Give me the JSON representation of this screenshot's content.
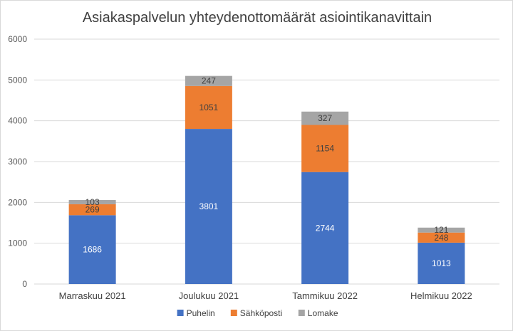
{
  "chart_data": {
    "type": "bar",
    "stacked": true,
    "title": "Asiakaspalvelun yhteydenottomäärät asiointikanavittain",
    "xlabel": "",
    "ylabel": "",
    "ylim": [
      0,
      6000
    ],
    "yticks": [
      "0",
      "1000",
      "2000",
      "3000",
      "4000",
      "5000",
      "6000"
    ],
    "grid": true,
    "legend": "bottom",
    "categories": [
      "Marraskuu 2021",
      "Joulukuu 2021",
      "Tammikuu 2022",
      "Helmikuu 2022"
    ],
    "series": [
      {
        "name": "Puhelin",
        "color": "#4472c4",
        "label_color": "#ffffff",
        "values": [
          1686,
          3801,
          2744,
          1013
        ]
      },
      {
        "name": "Sähköposti",
        "color": "#ed7d31",
        "label_color": "#404040",
        "values": [
          269,
          1051,
          1154,
          248
        ]
      },
      {
        "name": "Lomake",
        "color": "#a5a5a5",
        "label_color": "#404040",
        "values": [
          103,
          247,
          327,
          121
        ]
      }
    ]
  }
}
